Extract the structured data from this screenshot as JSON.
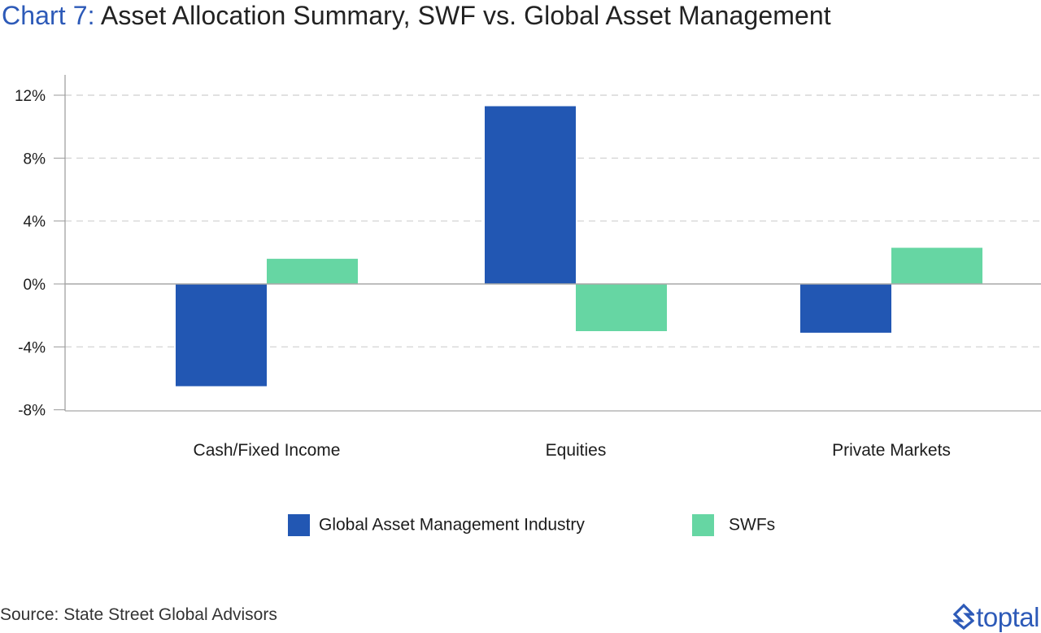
{
  "title": {
    "prefix": "Chart 7:",
    "main": "Asset Allocation Summary, SWF vs. Global Asset Management"
  },
  "source": "Source: State Street Global Advisors",
  "brand": {
    "name": "toptal",
    "icon": "toptal-logo-icon",
    "color": "#2d5ab8"
  },
  "chart_data": {
    "type": "bar",
    "title": "Asset Allocation Summary, SWF vs. Global Asset Management",
    "xlabel": "",
    "ylabel": "",
    "categories": [
      "Cash/Fixed Income",
      "Equities",
      "Private Markets"
    ],
    "series": [
      {
        "name": "Global Asset Management Industry",
        "values": [
          -6.5,
          11.3,
          -3.1
        ],
        "color": "#2257b3"
      },
      {
        "name": "SWFs",
        "values": [
          1.6,
          -3.0,
          2.3
        ],
        "color": "#66d6a3"
      }
    ],
    "y_ticks": [
      12,
      8,
      4,
      0,
      -4,
      -8
    ],
    "y_tick_labels": [
      "12%",
      "8%",
      "4%",
      "0%",
      "-4%",
      "-8%"
    ],
    "ylim": [
      -8,
      12
    ],
    "grid": true,
    "legend_position": "bottom-center"
  }
}
